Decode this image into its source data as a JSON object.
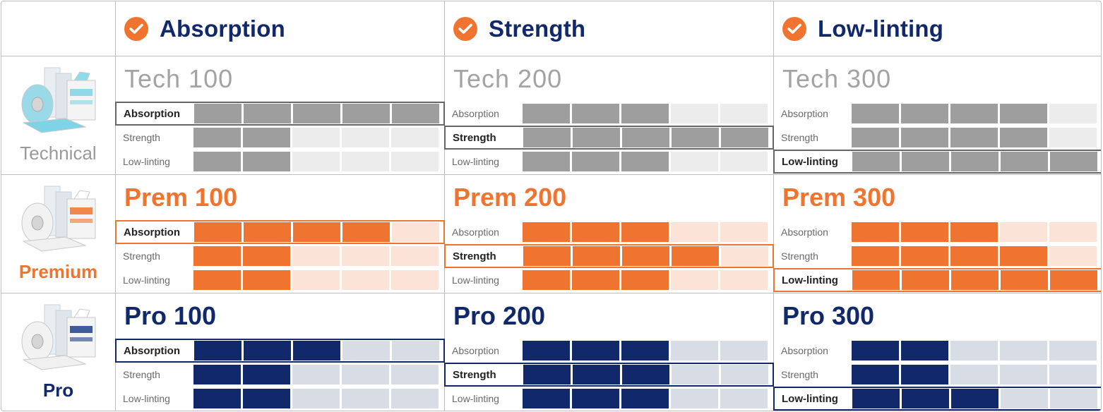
{
  "header": {
    "columns": [
      {
        "label": "Absorption",
        "icon": "check-circle-icon"
      },
      {
        "label": "Strength",
        "icon": "check-circle-icon"
      },
      {
        "label": "Low-linting",
        "icon": "check-circle-icon"
      }
    ]
  },
  "metrics": [
    "Absorption",
    "Strength",
    "Low-linting"
  ],
  "colors": {
    "orange": "#ef7430",
    "navy": "#11296b",
    "grey": "#9e9e9e"
  },
  "tiers": [
    {
      "label": "Technical",
      "theme": "tech",
      "products": [
        {
          "name": "Tech 100",
          "highlight": 0,
          "levels": [
            5,
            2,
            2
          ]
        },
        {
          "name": "Tech 200",
          "highlight": 1,
          "levels": [
            3,
            5,
            3
          ]
        },
        {
          "name": "Tech 300",
          "highlight": 2,
          "levels": [
            4,
            4,
            5
          ]
        }
      ]
    },
    {
      "label": "Premium",
      "theme": "prem",
      "products": [
        {
          "name": "Prem 100",
          "highlight": 0,
          "levels": [
            4,
            2,
            2
          ]
        },
        {
          "name": "Prem 200",
          "highlight": 1,
          "levels": [
            3,
            4,
            3
          ]
        },
        {
          "name": "Prem 300",
          "highlight": 2,
          "levels": [
            3,
            4,
            5
          ]
        }
      ]
    },
    {
      "label": "Pro",
      "theme": "pro",
      "products": [
        {
          "name": "Pro 100",
          "highlight": 0,
          "levels": [
            3,
            2,
            2
          ]
        },
        {
          "name": "Pro 200",
          "highlight": 1,
          "levels": [
            3,
            3,
            3
          ]
        },
        {
          "name": "Pro 300",
          "highlight": 2,
          "levels": [
            2,
            2,
            3
          ]
        }
      ]
    }
  ],
  "max_level": 5
}
